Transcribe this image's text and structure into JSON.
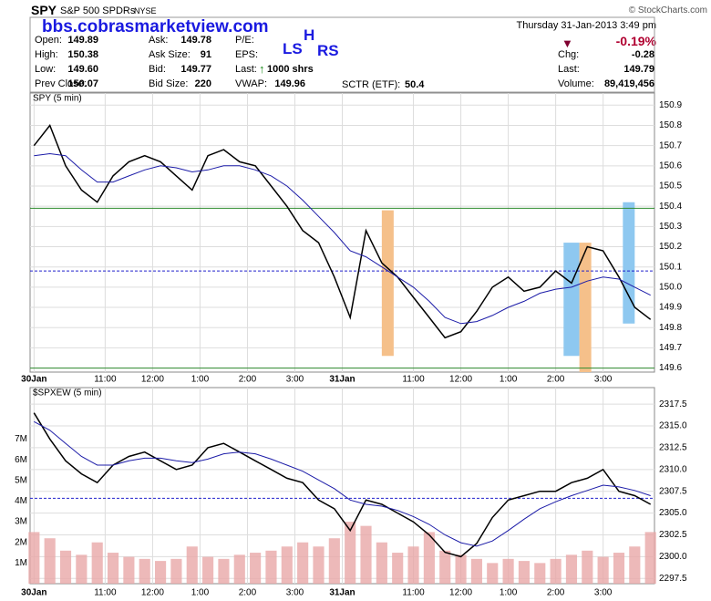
{
  "header": {
    "symbol": "SPY",
    "name": "S&P 500 SPDRs",
    "exchange": "NYSE",
    "copyright": "© StockCharts.com",
    "watermark": "bbs.cobrasmarketview.com",
    "date": "Thursday  31-Jan-2013  3:49 pm",
    "change_pct": "-0.19%",
    "pattern": [
      "LS",
      "H",
      "RS"
    ],
    "quote_columns": [
      [
        {
          "label": "Open:",
          "value": "149.89"
        },
        {
          "label": "High:",
          "value": "150.38"
        },
        {
          "label": "Low:",
          "value": "149.60"
        },
        {
          "label": "Prev Close:",
          "value": "150.07"
        }
      ],
      [
        {
          "label": "Ask:",
          "value": "149.78"
        },
        {
          "label": "Ask Size:",
          "value": "91"
        },
        {
          "label": "Bid:",
          "value": "149.77"
        },
        {
          "label": "Bid Size:",
          "value": "220"
        }
      ],
      [
        {
          "label": "P/E:",
          "value": ""
        },
        {
          "label": "EPS:",
          "value": ""
        },
        {
          "label": "Last:",
          "value": "1000 shrs"
        },
        {
          "label": "VWAP:",
          "value": "149.96"
        }
      ],
      [
        {
          "label": "Chg:",
          "value": "-0.28"
        },
        {
          "label": "Last:",
          "value": "149.79"
        },
        {
          "label": "Volume:",
          "value": "89,419,456"
        }
      ]
    ],
    "sctr": {
      "label": "SCTR (ETF):",
      "value": "50.4"
    }
  },
  "chart_data": [
    {
      "type": "line",
      "title": "SPY (5 min)",
      "grid": true,
      "x": [
        0,
        4,
        8,
        12,
        16,
        20,
        24,
        28,
        32,
        36,
        40,
        44,
        48,
        52,
        56,
        60,
        64,
        68,
        72,
        76,
        80,
        84,
        88,
        92,
        96,
        100,
        104,
        108,
        112,
        116,
        120,
        124,
        128,
        132,
        136,
        140,
        144,
        148,
        152,
        156
      ],
      "series": [
        {
          "color": "#000000",
          "values": [
            150.7,
            150.8,
            150.6,
            150.48,
            150.42,
            150.55,
            150.62,
            150.65,
            150.62,
            150.55,
            150.48,
            150.65,
            150.68,
            150.62,
            150.6,
            150.5,
            150.4,
            150.28,
            150.22,
            150.05,
            149.85,
            150.28,
            150.12,
            150.05,
            149.95,
            149.85,
            149.75,
            149.78,
            149.88,
            150.0,
            150.05,
            149.98,
            150.0,
            150.08,
            150.02,
            150.2,
            150.18,
            150.05,
            149.9,
            149.84
          ]
        },
        {
          "color": "#1c1ca8",
          "values": [
            150.65,
            150.66,
            150.65,
            150.58,
            150.52,
            150.52,
            150.55,
            150.58,
            150.6,
            150.59,
            150.57,
            150.58,
            150.6,
            150.6,
            150.58,
            150.55,
            150.5,
            150.43,
            150.35,
            150.27,
            150.18,
            150.15,
            150.1,
            150.05,
            150.0,
            149.93,
            149.85,
            149.82,
            149.83,
            149.86,
            149.9,
            149.93,
            149.97,
            149.99,
            150.0,
            150.03,
            150.05,
            150.04,
            150.0,
            149.96
          ]
        }
      ],
      "xlim": [
        -1,
        157
      ],
      "ylim": [
        149.58,
        150.96
      ],
      "yticks": [
        149.6,
        149.7,
        149.8,
        149.9,
        {
          "value": 150,
          "label": "150.0"
        },
        150.1,
        150.2,
        150.3,
        150.4,
        150.5,
        150.6,
        150.7,
        150.8,
        150.9
      ],
      "xticks": [
        {
          "value": 0,
          "label": "30Jan"
        },
        {
          "value": 18,
          "label": "11:00"
        },
        {
          "value": 30,
          "label": "12:00"
        },
        {
          "value": 42,
          "label": "1:00"
        },
        {
          "value": 54,
          "label": "2:00"
        },
        {
          "value": 66,
          "label": "3:00"
        },
        {
          "value": 78,
          "label": "31Jan"
        },
        {
          "value": 96,
          "label": "11:00"
        },
        {
          "value": 108,
          "label": "12:00"
        },
        {
          "value": 120,
          "label": "1:00"
        },
        {
          "value": 132,
          "label": "2:00"
        },
        {
          "value": 144,
          "label": "3:00"
        }
      ],
      "hlines": [
        {
          "value": 150.39,
          "color": "#2e8b2e"
        },
        {
          "value": 150.08,
          "color": "#2020cc",
          "dash": true
        },
        {
          "value": 149.6,
          "color": "#2e8b2e"
        }
      ],
      "bands": [
        {
          "xlim": [
            88,
            91
          ],
          "ylim": [
            149.66,
            150.38
          ],
          "color": "#f5c08a"
        },
        {
          "xlim": [
            134,
            138
          ],
          "ylim": [
            149.66,
            150.22
          ],
          "color": "#8ec8f0"
        },
        {
          "xlim": [
            138,
            141
          ],
          "ylim": [
            149.58,
            150.22
          ],
          "color": "#f5c08a"
        },
        {
          "xlim": [
            149,
            152
          ],
          "ylim": [
            149.82,
            150.42
          ],
          "color": "#8ec8f0"
        }
      ]
    },
    {
      "type": "line",
      "title": "$SPXEW (5 min)",
      "grid": true,
      "x": [
        0,
        4,
        8,
        12,
        16,
        20,
        24,
        28,
        32,
        36,
        40,
        44,
        48,
        52,
        56,
        60,
        64,
        68,
        72,
        76,
        80,
        84,
        88,
        92,
        96,
        100,
        104,
        108,
        112,
        116,
        120,
        124,
        128,
        132,
        136,
        140,
        144,
        148,
        152,
        156
      ],
      "series": [
        {
          "color": "#e8a8a8",
          "type": "bar",
          "axis": "y2",
          "values": [
            2.5,
            2.2,
            1.6,
            1.4,
            2.0,
            1.5,
            1.3,
            1.2,
            1.1,
            1.2,
            1.8,
            1.3,
            1.2,
            1.4,
            1.5,
            1.6,
            1.8,
            2.0,
            1.8,
            2.2,
            3.0,
            2.8,
            2.0,
            1.5,
            1.8,
            2.5,
            1.6,
            1.4,
            1.2,
            1.0,
            1.2,
            1.1,
            1.0,
            1.2,
            1.4,
            1.6,
            1.3,
            1.5,
            1.8,
            2.5
          ]
        },
        {
          "color": "#000000",
          "values": [
            2316.5,
            2313.5,
            2311.0,
            2309.5,
            2308.5,
            2310.5,
            2311.5,
            2312.0,
            2311.0,
            2310.0,
            2310.5,
            2312.5,
            2313.0,
            2312.0,
            2311.0,
            2310.0,
            2309.0,
            2308.5,
            2306.5,
            2305.5,
            2303.0,
            2306.5,
            2306.0,
            2305.0,
            2304.0,
            2302.5,
            2300.5,
            2300.0,
            2301.5,
            2304.5,
            2306.5,
            2307.0,
            2307.5,
            2307.5,
            2308.5,
            2309.0,
            2310.0,
            2307.5,
            2307.0,
            2306.0
          ]
        },
        {
          "color": "#1c1ca8",
          "values": [
            2315.5,
            2314.5,
            2313.0,
            2311.5,
            2310.5,
            2310.5,
            2311.0,
            2311.3,
            2311.3,
            2311.0,
            2310.8,
            2311.2,
            2311.8,
            2312.0,
            2311.8,
            2311.2,
            2310.5,
            2309.8,
            2308.8,
            2307.8,
            2306.5,
            2306.0,
            2305.8,
            2305.3,
            2304.6,
            2303.7,
            2302.5,
            2301.6,
            2301.2,
            2301.8,
            2303.0,
            2304.3,
            2305.5,
            2306.3,
            2307.0,
            2307.6,
            2308.2,
            2308.0,
            2307.6,
            2307.0
          ]
        }
      ],
      "xlim": [
        -1,
        157
      ],
      "ylim": [
        2296.9,
        2319.4
      ],
      "y2lim": [
        0,
        9.5
      ],
      "yticks": [
        2297.5,
        {
          "value": 2300,
          "label": "2300.0"
        },
        2302.5,
        {
          "value": 2305,
          "label": "2305.0"
        },
        2307.5,
        {
          "value": 2310,
          "label": "2310.0"
        },
        2312.5,
        {
          "value": 2315,
          "label": "2315.0"
        },
        2317.5
      ],
      "y2ticks": [
        {
          "value": 1,
          "label": "1M"
        },
        {
          "value": 2,
          "label": "2M"
        },
        {
          "value": 3,
          "label": "3M"
        },
        {
          "value": 4,
          "label": "4M"
        },
        {
          "value": 5,
          "label": "5M"
        },
        {
          "value": 6,
          "label": "6M"
        },
        {
          "value": 7,
          "label": "7M"
        }
      ],
      "xticks": [
        {
          "value": 0,
          "label": "30Jan"
        },
        {
          "value": 18,
          "label": "11:00"
        },
        {
          "value": 30,
          "label": "12:00"
        },
        {
          "value": 42,
          "label": "1:00"
        },
        {
          "value": 54,
          "label": "2:00"
        },
        {
          "value": 66,
          "label": "3:00"
        },
        {
          "value": 78,
          "label": "31Jan"
        },
        {
          "value": 96,
          "label": "11:00"
        },
        {
          "value": 108,
          "label": "12:00"
        },
        {
          "value": 120,
          "label": "1:00"
        },
        {
          "value": 132,
          "label": "2:00"
        },
        {
          "value": 144,
          "label": "3:00"
        }
      ],
      "hlines": [
        {
          "value": 2306.7,
          "color": "#2020cc",
          "dash": true
        }
      ],
      "bands": []
    }
  ]
}
